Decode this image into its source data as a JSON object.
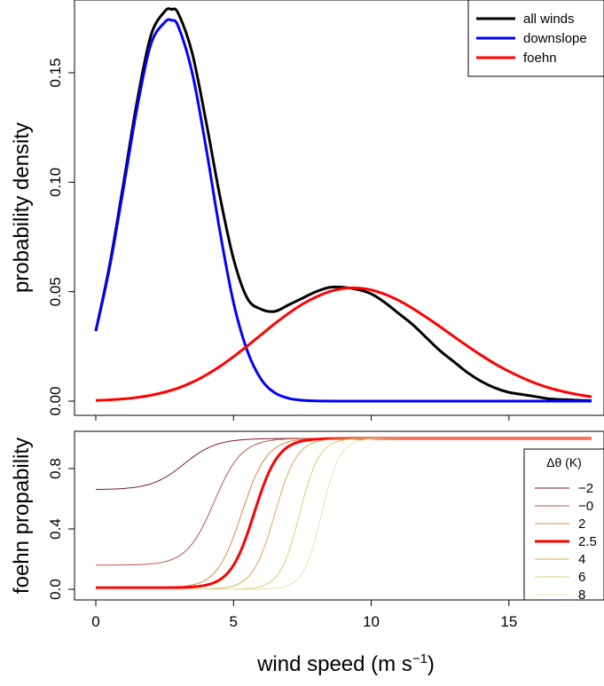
{
  "chart_data": [
    {
      "type": "line",
      "ylabel": "probability density",
      "xlim": [
        0,
        18
      ],
      "ylim": [
        0,
        0.18
      ],
      "y_ticks": [
        "0.00",
        "0.05",
        "0.10",
        "0.15"
      ],
      "y_tick_values": [
        0,
        0.05,
        0.1,
        0.15
      ],
      "x_ticks_shown": [
        0,
        5,
        10,
        15
      ],
      "legend_position": "top-right",
      "series": [
        {
          "name": "all winds",
          "color": "#000000",
          "x": [
            0,
            0.5,
            1,
            1.5,
            2,
            2.5,
            2.75,
            3,
            3.5,
            4,
            4.5,
            5,
            5.5,
            6,
            6.5,
            7,
            7.5,
            8,
            8.5,
            9,
            9.5,
            10,
            10.5,
            11,
            11.5,
            12,
            12.5,
            13,
            13.5,
            14,
            14.5,
            15,
            15.5,
            16,
            16.5,
            17,
            17.5,
            18
          ],
          "y": [
            0.032,
            0.062,
            0.099,
            0.137,
            0.167,
            0.178,
            0.179,
            0.177,
            0.159,
            0.128,
            0.094,
            0.065,
            0.047,
            0.042,
            0.041,
            0.044,
            0.047,
            0.05,
            0.052,
            0.052,
            0.051,
            0.049,
            0.045,
            0.04,
            0.035,
            0.029,
            0.023,
            0.018,
            0.013,
            0.009,
            0.006,
            0.004,
            0.003,
            0.002,
            0.001,
            0.0007,
            0.0004,
            0.0002
          ]
        },
        {
          "name": "downslope",
          "color": "#0000ff",
          "x": [
            0,
            0.5,
            1,
            1.5,
            2,
            2.5,
            2.75,
            3,
            3.5,
            4,
            4.5,
            5,
            5.5,
            6,
            6.5,
            7,
            7.5,
            8,
            9,
            10,
            12,
            14,
            16,
            18
          ],
          "y": [
            0.032,
            0.061,
            0.097,
            0.134,
            0.163,
            0.173,
            0.174,
            0.171,
            0.15,
            0.116,
            0.078,
            0.045,
            0.023,
            0.01,
            0.0038,
            0.0013,
            0.0004,
            0.0001,
            0,
            0,
            0,
            0,
            0,
            0
          ]
        },
        {
          "name": "foehn",
          "color": "#ff0000",
          "x": [
            0,
            0.5,
            1,
            1.5,
            2,
            2.5,
            3,
            3.5,
            4,
            4.5,
            5,
            5.5,
            6,
            6.5,
            7,
            7.5,
            8,
            8.5,
            9,
            9.5,
            10,
            10.5,
            11,
            11.5,
            12,
            12.5,
            13,
            13.5,
            14,
            14.5,
            15,
            15.5,
            16,
            16.5,
            17,
            17.5,
            18
          ],
          "y": [
            0.0003,
            0.0006,
            0.001,
            0.0017,
            0.0027,
            0.0041,
            0.006,
            0.0086,
            0.0119,
            0.0158,
            0.0203,
            0.0252,
            0.0303,
            0.0354,
            0.0401,
            0.0443,
            0.0476,
            0.0501,
            0.0515,
            0.0517,
            0.0508,
            0.0488,
            0.046,
            0.0424,
            0.0383,
            0.034,
            0.0295,
            0.0251,
            0.0209,
            0.017,
            0.0136,
            0.0106,
            0.008,
            0.0059,
            0.0043,
            0.003,
            0.002
          ]
        }
      ]
    },
    {
      "type": "line",
      "xlabel": "wind speed (m s",
      "xlabel_sup": "−1",
      "xlabel_end": ")",
      "ylabel": "foehn propability",
      "xlim": [
        0,
        18
      ],
      "ylim": [
        0,
        1
      ],
      "x_ticks": [
        "0",
        "5",
        "10",
        "15"
      ],
      "x_tick_values": [
        0,
        5,
        10,
        15
      ],
      "y_ticks": [
        "0.0",
        "0.4",
        "0.8"
      ],
      "y_tick_values": [
        0,
        0.4,
        0.8
      ],
      "legend_title": "Δθ (K)",
      "legend_position": "right",
      "curve_midpoints_ms": [
        3.2,
        4.3,
        5.3,
        5.75,
        6.5,
        7.4,
        8.2
      ],
      "series": [
        {
          "name": "−2",
          "color": "#7a1c2e",
          "width": 1,
          "baseline": 0.66,
          "mid": 3.2,
          "k": 1.7
        },
        {
          "name": "−0",
          "color": "#b5574a",
          "width": 1,
          "baseline": 0.16,
          "mid": 4.3,
          "k": 2.0
        },
        {
          "name": "2",
          "color": "#d18a52",
          "width": 1,
          "baseline": 0.01,
          "mid": 5.3,
          "k": 2.2
        },
        {
          "name": "2.5",
          "color": "#ff0000",
          "width": 3,
          "baseline": 0.01,
          "mid": 5.75,
          "k": 2.3
        },
        {
          "name": "4",
          "color": "#d9ad4e",
          "width": 1,
          "baseline": 0.0,
          "mid": 6.5,
          "k": 2.5
        },
        {
          "name": "6",
          "color": "#d8cf74",
          "width": 1,
          "baseline": 0.0,
          "mid": 7.4,
          "k": 2.8
        },
        {
          "name": "8",
          "color": "#e8e3b4",
          "width": 1,
          "baseline": 0.0,
          "mid": 8.2,
          "k": 3.0
        }
      ]
    }
  ]
}
